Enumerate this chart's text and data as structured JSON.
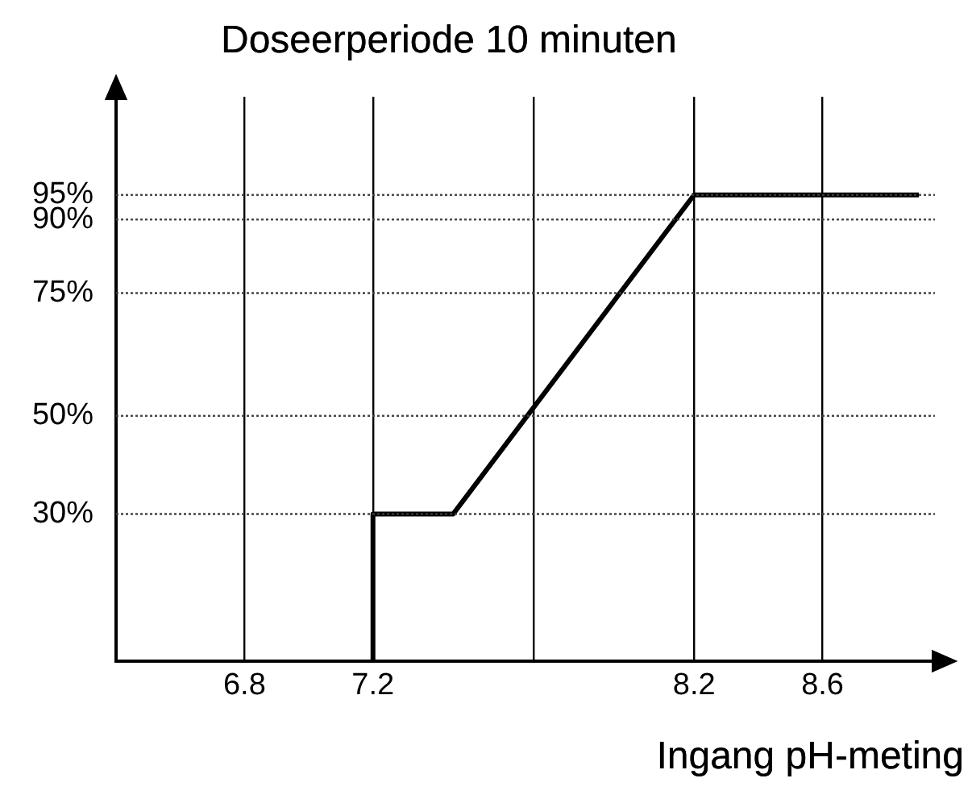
{
  "chart_data": {
    "type": "line",
    "ylabel": "Doseerperiode 10 minuten",
    "xlabel": "Ingang pH-meting",
    "x": [
      7.2,
      7.2,
      7.45,
      8.2,
      8.9
    ],
    "series": [
      {
        "color": "#000000",
        "values": [
          0,
          30,
          30,
          95,
          95
        ]
      }
    ],
    "xlim": [
      6.4,
      8.95
    ],
    "xticks": [
      6.8,
      7.2,
      {
        "value": 7.7,
        "label": null
      },
      8.2,
      8.6
    ],
    "ylim": [
      0,
      115
    ],
    "yticks": [
      {
        "value": 30,
        "label": "30%"
      },
      {
        "value": 50,
        "label": "50%"
      },
      {
        "value": 75,
        "label": "75%"
      },
      {
        "value": 90,
        "label": "90%"
      },
      {
        "value": 95,
        "label": "95%"
      }
    ],
    "grid": true,
    "marker": "none",
    "line_style": "solid",
    "legend": false
  }
}
